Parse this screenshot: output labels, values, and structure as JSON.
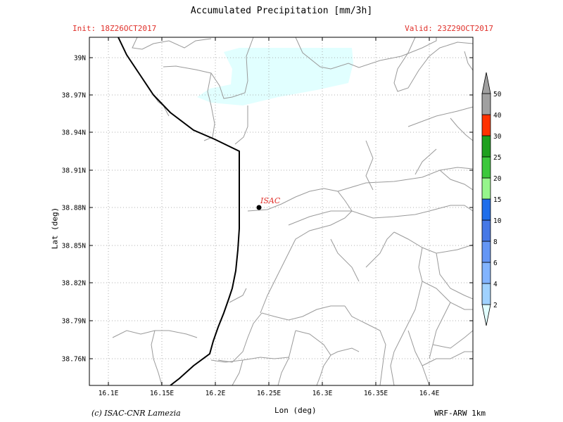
{
  "header": {
    "title": "Accumulated Precipitation [mm/3h]",
    "init": "Init: 18Z26OCT2017",
    "valid": "Valid: 23Z29OCT2017"
  },
  "footer": {
    "credit": "(c) ISAC-CNR Lamezia",
    "model": "WRF-ARW 1km"
  },
  "axes": {
    "xlabel": "Lon (deg)",
    "ylabel": "Lat (deg)",
    "x_ticks": [
      "16.1E",
      "16.15E",
      "16.2E",
      "16.25E",
      "16.3E",
      "16.35E",
      "16.4E"
    ],
    "y_ticks": [
      "39N",
      "38.97N",
      "38.94N",
      "38.91N",
      "38.88N",
      "38.85N",
      "38.82N",
      "38.79N",
      "38.76N"
    ]
  },
  "marker": {
    "label": "ISAC",
    "color": "#e0302a"
  },
  "colorbar": {
    "levels": [
      "2",
      "4",
      "6",
      "8",
      "10",
      "15",
      "20",
      "25",
      "30",
      "40",
      "50"
    ],
    "colors": [
      "#e1ffff",
      "#a0d2ff",
      "#82b4ff",
      "#6496f5",
      "#4678e6",
      "#1e6eeb",
      "#96f58c",
      "#3cc83c",
      "#1ea01e",
      "#ff3200",
      "#a0a0a0"
    ]
  },
  "precip_colors": {
    "shaded": "#e1ffff"
  }
}
